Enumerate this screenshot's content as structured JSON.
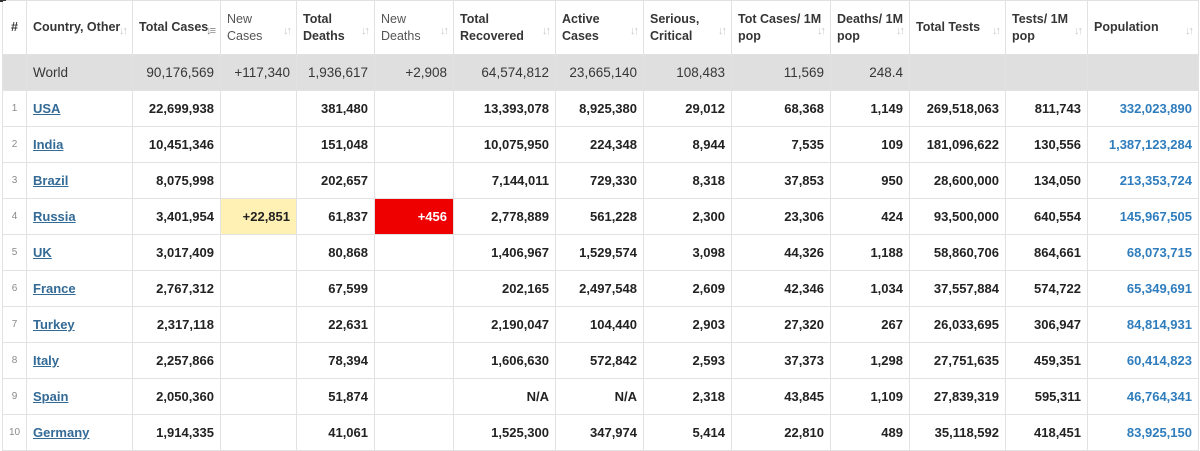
{
  "headers": [
    {
      "key": "idx",
      "label": "#"
    },
    {
      "key": "country",
      "label": "Country, Other"
    },
    {
      "key": "total_cases",
      "label": "Total Cases"
    },
    {
      "key": "new_cases",
      "label": "New Cases"
    },
    {
      "key": "total_deaths",
      "label": "Total Deaths"
    },
    {
      "key": "new_deaths",
      "label": "New Deaths"
    },
    {
      "key": "total_recovered",
      "label": "Total Recovered"
    },
    {
      "key": "active_cases",
      "label": "Active Cases"
    },
    {
      "key": "serious_critical",
      "label": "Serious, Critical"
    },
    {
      "key": "cases_per_1m",
      "label": "Tot Cases/ 1M pop"
    },
    {
      "key": "deaths_per_1m",
      "label": "Deaths/ 1M pop"
    },
    {
      "key": "total_tests",
      "label": "Total Tests"
    },
    {
      "key": "tests_per_1m",
      "label": "Tests/ 1M pop"
    },
    {
      "key": "population",
      "label": "Population"
    }
  ],
  "sort_icon": "sort-arrows-icon",
  "highlight_colors": {
    "new_cases": "#fff0b3",
    "new_deaths": "#ee0000",
    "world_row": "#dfdfdf",
    "link": "#336a96",
    "population": "#2f7dbd"
  },
  "world": {
    "country": "World",
    "total_cases": "90,176,569",
    "new_cases": "+117,340",
    "total_deaths": "1,936,617",
    "new_deaths": "+2,908",
    "total_recovered": "64,574,812",
    "active_cases": "23,665,140",
    "serious_critical": "108,483",
    "cases_per_1m": "11,569",
    "deaths_per_1m": "248.4",
    "total_tests": "",
    "tests_per_1m": "",
    "population": ""
  },
  "rows": [
    {
      "idx": "1",
      "country": "USA",
      "total_cases": "22,699,938",
      "new_cases": "",
      "total_deaths": "381,480",
      "new_deaths": "",
      "total_recovered": "13,393,078",
      "active_cases": "8,925,380",
      "serious_critical": "29,012",
      "cases_per_1m": "68,368",
      "deaths_per_1m": "1,149",
      "total_tests": "269,518,063",
      "tests_per_1m": "811,743",
      "population": "332,023,890"
    },
    {
      "idx": "2",
      "country": "India",
      "total_cases": "10,451,346",
      "new_cases": "",
      "total_deaths": "151,048",
      "new_deaths": "",
      "total_recovered": "10,075,950",
      "active_cases": "224,348",
      "serious_critical": "8,944",
      "cases_per_1m": "7,535",
      "deaths_per_1m": "109",
      "total_tests": "181,096,622",
      "tests_per_1m": "130,556",
      "population": "1,387,123,284"
    },
    {
      "idx": "3",
      "country": "Brazil",
      "total_cases": "8,075,998",
      "new_cases": "",
      "total_deaths": "202,657",
      "new_deaths": "",
      "total_recovered": "7,144,011",
      "active_cases": "729,330",
      "serious_critical": "8,318",
      "cases_per_1m": "37,853",
      "deaths_per_1m": "950",
      "total_tests": "28,600,000",
      "tests_per_1m": "134,050",
      "population": "213,353,724"
    },
    {
      "idx": "4",
      "country": "Russia",
      "total_cases": "3,401,954",
      "new_cases": "+22,851",
      "total_deaths": "61,837",
      "new_deaths": "+456",
      "total_recovered": "2,778,889",
      "active_cases": "561,228",
      "serious_critical": "2,300",
      "cases_per_1m": "23,306",
      "deaths_per_1m": "424",
      "total_tests": "93,500,000",
      "tests_per_1m": "640,554",
      "population": "145,967,505"
    },
    {
      "idx": "5",
      "country": "UK",
      "total_cases": "3,017,409",
      "new_cases": "",
      "total_deaths": "80,868",
      "new_deaths": "",
      "total_recovered": "1,406,967",
      "active_cases": "1,529,574",
      "serious_critical": "3,098",
      "cases_per_1m": "44,326",
      "deaths_per_1m": "1,188",
      "total_tests": "58,860,706",
      "tests_per_1m": "864,661",
      "population": "68,073,715"
    },
    {
      "idx": "6",
      "country": "France",
      "total_cases": "2,767,312",
      "new_cases": "",
      "total_deaths": "67,599",
      "new_deaths": "",
      "total_recovered": "202,165",
      "active_cases": "2,497,548",
      "serious_critical": "2,609",
      "cases_per_1m": "42,346",
      "deaths_per_1m": "1,034",
      "total_tests": "37,557,884",
      "tests_per_1m": "574,722",
      "population": "65,349,691"
    },
    {
      "idx": "7",
      "country": "Turkey",
      "total_cases": "2,317,118",
      "new_cases": "",
      "total_deaths": "22,631",
      "new_deaths": "",
      "total_recovered": "2,190,047",
      "active_cases": "104,440",
      "serious_critical": "2,903",
      "cases_per_1m": "27,320",
      "deaths_per_1m": "267",
      "total_tests": "26,033,695",
      "tests_per_1m": "306,947",
      "population": "84,814,931"
    },
    {
      "idx": "8",
      "country": "Italy",
      "total_cases": "2,257,866",
      "new_cases": "",
      "total_deaths": "78,394",
      "new_deaths": "",
      "total_recovered": "1,606,630",
      "active_cases": "572,842",
      "serious_critical": "2,593",
      "cases_per_1m": "37,373",
      "deaths_per_1m": "1,298",
      "total_tests": "27,751,635",
      "tests_per_1m": "459,351",
      "population": "60,414,823"
    },
    {
      "idx": "9",
      "country": "Spain",
      "total_cases": "2,050,360",
      "new_cases": "",
      "total_deaths": "51,874",
      "new_deaths": "",
      "total_recovered": "N/A",
      "active_cases": "N/A",
      "serious_critical": "2,318",
      "cases_per_1m": "43,845",
      "deaths_per_1m": "1,109",
      "total_tests": "27,839,319",
      "tests_per_1m": "595,311",
      "population": "46,764,341"
    },
    {
      "idx": "10",
      "country": "Germany",
      "total_cases": "1,914,335",
      "new_cases": "",
      "total_deaths": "41,061",
      "new_deaths": "",
      "total_recovered": "1,525,300",
      "active_cases": "347,974",
      "serious_critical": "5,414",
      "cases_per_1m": "22,810",
      "deaths_per_1m": "489",
      "total_tests": "35,118,592",
      "tests_per_1m": "418,451",
      "population": "83,925,150"
    }
  ]
}
